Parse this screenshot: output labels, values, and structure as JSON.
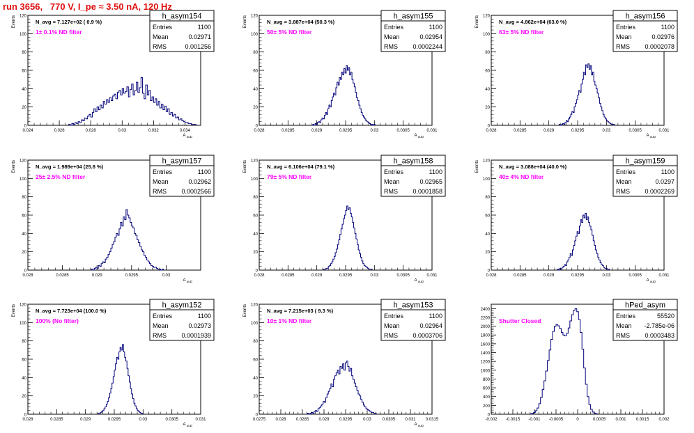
{
  "title": "run 3656,   770 V, I_pe ≈ 3.50 nA, 120 Hz",
  "colors": {
    "title": "#e01010",
    "hist": "#00007a",
    "note": "#ff00ff",
    "axis": "#000000"
  },
  "chart_data": [
    {
      "type": "histogram",
      "hist_name": "h_asym154",
      "stats": {
        "Entries": "1100",
        "Mean": "0.02971",
        "RMS": "0.001256"
      },
      "navg": "N_avg = 7.127e+02 ( 0.9 %)",
      "note": "1± 0.1% ND filter",
      "ylabel": "Events",
      "xlabel": "A_uuD",
      "xlim": [
        0.024,
        0.035
      ],
      "ylim": [
        0,
        120
      ],
      "xticks": [
        {
          "v": 0.024,
          "label": "0.024"
        },
        {
          "v": 0.026,
          "label": "0.026"
        },
        {
          "v": 0.028,
          "label": "0.028"
        },
        {
          "v": 0.03,
          "label": "0.03"
        },
        {
          "v": 0.032,
          "label": "0.032"
        },
        {
          "v": 0.034,
          "label": "0.034"
        }
      ],
      "yticks": [
        0,
        20,
        40,
        60,
        80,
        100,
        120
      ],
      "bins": {
        "start": 0.0266,
        "width": 0.0001,
        "counts": [
          1,
          0,
          2,
          1,
          3,
          2,
          4,
          3,
          6,
          5,
          8,
          7,
          10,
          12,
          9,
          14,
          18,
          15,
          20,
          17,
          22,
          19,
          26,
          23,
          28,
          25,
          30,
          27,
          32,
          34,
          29,
          36,
          38,
          33,
          40,
          35,
          37,
          42,
          31,
          39,
          45,
          33,
          38,
          47,
          36,
          41,
          52,
          35,
          29,
          44,
          33,
          38,
          27,
          31,
          25,
          29,
          22,
          26,
          19,
          23,
          17,
          21,
          15,
          18,
          12,
          14,
          10,
          12,
          8,
          9,
          6,
          7,
          5,
          4,
          3,
          3,
          2,
          2,
          1,
          1,
          1
        ]
      }
    },
    {
      "type": "histogram",
      "hist_name": "h_asym155",
      "stats": {
        "Entries": "1100",
        "Mean": "0.02954",
        "RMS": "0.0002244"
      },
      "navg": "N_avg = 3.887e+04 (50.3 %)",
      "note": "50± 5% ND filter",
      "ylabel": "Events",
      "xlabel": "A_uuD",
      "xlim": [
        0.028,
        0.031
      ],
      "ylim": [
        0,
        120
      ],
      "xticks": [
        {
          "v": 0.028,
          "label": "0.028"
        },
        {
          "v": 0.0285,
          "label": "0.0285"
        },
        {
          "v": 0.029,
          "label": "0.029"
        },
        {
          "v": 0.0295,
          "label": "0.0295"
        },
        {
          "v": 0.03,
          "label": "0.03"
        },
        {
          "v": 0.0305,
          "label": "0.0305"
        },
        {
          "v": 0.031,
          "label": "0.031"
        }
      ],
      "yticks": [
        0,
        20,
        40,
        60,
        80,
        100,
        120
      ],
      "bins": {
        "start": 0.02893,
        "width": 2e-05,
        "counts": [
          1,
          0,
          2,
          1,
          3,
          4,
          3,
          6,
          8,
          7,
          11,
          14,
          12,
          18,
          22,
          20,
          27,
          31,
          35,
          33,
          41,
          47,
          44,
          52,
          50,
          58,
          55,
          62,
          57,
          65,
          60,
          63,
          55,
          58,
          50,
          46,
          42,
          36,
          30,
          27,
          22,
          18,
          14,
          11,
          9,
          7,
          5,
          4,
          3,
          2,
          1,
          1,
          0,
          1
        ]
      }
    },
    {
      "type": "histogram",
      "hist_name": "h_asym156",
      "stats": {
        "Entries": "1100",
        "Mean": "0.02976",
        "RMS": "0.0002078"
      },
      "navg": "N_avg = 4.862e+04 (63.0 %)",
      "note": "63± 5% ND filter",
      "ylabel": "Events",
      "xlabel": "A_uuD",
      "xlim": [
        0.028,
        0.031
      ],
      "ylim": [
        0,
        120
      ],
      "xticks": [
        {
          "v": 0.028,
          "label": "0.028"
        },
        {
          "v": 0.0285,
          "label": "0.0285"
        },
        {
          "v": 0.029,
          "label": "0.029"
        },
        {
          "v": 0.0295,
          "label": "0.0295"
        },
        {
          "v": 0.03,
          "label": "0.03"
        },
        {
          "v": 0.0305,
          "label": "0.0305"
        },
        {
          "v": 0.031,
          "label": "0.031"
        }
      ],
      "yticks": [
        0,
        20,
        40,
        60,
        80,
        100,
        120
      ],
      "bins": {
        "start": 0.02918,
        "width": 2e-05,
        "counts": [
          1,
          0,
          1,
          2,
          1,
          3,
          5,
          4,
          7,
          9,
          12,
          15,
          14,
          20,
          24,
          28,
          33,
          38,
          36,
          45,
          50,
          58,
          55,
          66,
          63,
          67,
          61,
          65,
          55,
          58,
          48,
          44,
          40,
          35,
          30,
          24,
          20,
          16,
          12,
          9,
          7,
          5,
          4,
          3,
          2,
          1,
          1,
          1
        ]
      }
    },
    {
      "type": "histogram",
      "hist_name": "h_asym157",
      "stats": {
        "Entries": "1100",
        "Mean": "0.02962",
        "RMS": "0.0002566"
      },
      "navg": "N_avg = 1.989e+04 (25.8 %)",
      "note": "25± 2.5% ND filter",
      "ylabel": "Events",
      "xlabel": "A_uuD",
      "xlim": [
        0.028,
        0.0305
      ],
      "ylim": [
        0,
        120
      ],
      "xticks": [
        {
          "v": 0.028,
          "label": "0.028"
        },
        {
          "v": 0.0285,
          "label": "0.0285"
        },
        {
          "v": 0.029,
          "label": "0.029"
        },
        {
          "v": 0.0295,
          "label": "0.0295"
        },
        {
          "v": 0.03,
          "label": "0.03"
        }
      ],
      "yticks": [
        0,
        20,
        40,
        60,
        80,
        100,
        120
      ],
      "bins": {
        "start": 0.02892,
        "width": 2e-05,
        "counts": [
          1,
          0,
          2,
          3,
          2,
          5,
          4,
          7,
          9,
          8,
          12,
          14,
          17,
          20,
          24,
          28,
          31,
          36,
          40,
          38,
          45,
          52,
          48,
          58,
          55,
          66,
          60,
          57,
          52,
          48,
          46,
          40,
          38,
          33,
          30,
          26,
          22,
          20,
          16,
          14,
          11,
          9,
          7,
          5,
          4,
          3,
          3,
          2,
          1,
          1,
          0,
          1
        ]
      }
    },
    {
      "type": "histogram",
      "hist_name": "h_asym158",
      "stats": {
        "Entries": "1100",
        "Mean": "0.02965",
        "RMS": "0.0001858"
      },
      "navg": "N_avg = 6.106e+04 (79.1 %)",
      "note": "79± 5% ND filter",
      "ylabel": "Events",
      "xlabel": "A_uuD",
      "xlim": [
        0.028,
        0.031
      ],
      "ylim": [
        0,
        120
      ],
      "xticks": [
        {
          "v": 0.028,
          "label": "0.028"
        },
        {
          "v": 0.0285,
          "label": "0.0285"
        },
        {
          "v": 0.029,
          "label": "0.029"
        },
        {
          "v": 0.0295,
          "label": "0.0295"
        },
        {
          "v": 0.03,
          "label": "0.03"
        },
        {
          "v": 0.0305,
          "label": "0.0305"
        },
        {
          "v": 0.031,
          "label": "0.031"
        }
      ],
      "yticks": [
        0,
        20,
        40,
        60,
        80,
        100,
        120
      ],
      "bins": {
        "start": 0.02912,
        "width": 2e-05,
        "counts": [
          1,
          1,
          2,
          2,
          4,
          5,
          7,
          9,
          12,
          15,
          19,
          23,
          28,
          33,
          39,
          45,
          50,
          56,
          60,
          65,
          70,
          66,
          68,
          62,
          58,
          52,
          46,
          40,
          34,
          28,
          22,
          18,
          14,
          10,
          7,
          5,
          4,
          3,
          2,
          1,
          1,
          1
        ]
      }
    },
    {
      "type": "histogram",
      "hist_name": "h_asym159",
      "stats": {
        "Entries": "1100",
        "Mean": "0.0297",
        "RMS": "0.0002269"
      },
      "navg": "N_avg = 3.088e+04 (40.0 %)",
      "note": "40± 4% ND filter",
      "ylabel": "Events",
      "xlabel": "A_uuD",
      "xlim": [
        0.028,
        0.031
      ],
      "ylim": [
        0,
        120
      ],
      "xticks": [
        {
          "v": 0.028,
          "label": "0.028"
        },
        {
          "v": 0.0285,
          "label": "0.0285"
        },
        {
          "v": 0.029,
          "label": "0.029"
        },
        {
          "v": 0.0295,
          "label": "0.0295"
        },
        {
          "v": 0.03,
          "label": "0.03"
        },
        {
          "v": 0.0305,
          "label": "0.0305"
        },
        {
          "v": 0.031,
          "label": "0.031"
        }
      ],
      "yticks": [
        0,
        20,
        40,
        60,
        80,
        100,
        120
      ],
      "bins": {
        "start": 0.02915,
        "width": 2e-05,
        "counts": [
          1,
          0,
          2,
          1,
          3,
          4,
          6,
          5,
          9,
          11,
          14,
          18,
          16,
          22,
          27,
          32,
          37,
          42,
          40,
          48,
          55,
          52,
          60,
          57,
          62,
          55,
          58,
          52,
          48,
          44,
          38,
          32,
          27,
          22,
          18,
          14,
          11,
          8,
          6,
          5,
          3,
          2,
          2,
          1,
          1
        ]
      }
    },
    {
      "type": "histogram",
      "hist_name": "h_asym152",
      "stats": {
        "Entries": "1100",
        "Mean": "0.02973",
        "RMS": "0.0001939"
      },
      "navg": "N_avg = 7.723e+04 (100.0 %)",
      "note": "100% (No filter)",
      "ylabel": "Events",
      "xlabel": "A_uuD",
      "xlim": [
        0.028,
        0.031
      ],
      "ylim": [
        0,
        120
      ],
      "xticks": [
        {
          "v": 0.028,
          "label": "0.028"
        },
        {
          "v": 0.0285,
          "label": "0.0285"
        },
        {
          "v": 0.029,
          "label": "0.029"
        },
        {
          "v": 0.0295,
          "label": "0.0295"
        },
        {
          "v": 0.03,
          "label": "0.03"
        },
        {
          "v": 0.0305,
          "label": "0.0305"
        },
        {
          "v": 0.031,
          "label": "0.031"
        }
      ],
      "yticks": [
        0,
        20,
        40,
        60,
        80,
        100,
        120
      ],
      "bins": {
        "start": 0.02922,
        "width": 2e-05,
        "counts": [
          1,
          1,
          2,
          3,
          4,
          6,
          8,
          11,
          14,
          18,
          23,
          28,
          34,
          41,
          48,
          55,
          62,
          60,
          68,
          73,
          70,
          76,
          68,
          62,
          58,
          50,
          42,
          35,
          28,
          22,
          17,
          12,
          9,
          6,
          4,
          3,
          2,
          1,
          1
        ]
      }
    },
    {
      "type": "histogram",
      "hist_name": "h_asym153",
      "stats": {
        "Entries": "1100",
        "Mean": "0.02964",
        "RMS": "0.0003706"
      },
      "navg": "N_avg = 7.215e+03 ( 9.3 %)",
      "note": "10± 1% ND filter",
      "ylabel": "Events",
      "xlabel": "A_uuD",
      "xlim": [
        0.0275,
        0.0315
      ],
      "ylim": [
        0,
        120
      ],
      "xticks": [
        {
          "v": 0.0275,
          "label": "0.0275"
        },
        {
          "v": 0.028,
          "label": "0.028"
        },
        {
          "v": 0.0285,
          "label": "0.0285"
        },
        {
          "v": 0.029,
          "label": "0.029"
        },
        {
          "v": 0.0295,
          "label": "0.0295"
        },
        {
          "v": 0.03,
          "label": "0.03"
        },
        {
          "v": 0.0305,
          "label": "0.0305"
        },
        {
          "v": 0.031,
          "label": "0.031"
        },
        {
          "v": 0.0315,
          "label": "0.0315"
        }
      ],
      "yticks": [
        0,
        20,
        40,
        60,
        80,
        100,
        120
      ],
      "bins": {
        "start": 0.02862,
        "width": 3e-05,
        "counts": [
          1,
          0,
          1,
          2,
          1,
          3,
          4,
          3,
          6,
          7,
          9,
          11,
          14,
          13,
          18,
          22,
          25,
          28,
          33,
          30,
          38,
          42,
          45,
          48,
          44,
          52,
          50,
          55,
          48,
          56,
          58,
          52,
          47,
          50,
          42,
          38,
          34,
          30,
          26,
          22,
          20,
          16,
          13,
          10,
          8,
          6,
          5,
          4,
          3,
          2,
          2,
          1,
          1
        ]
      }
    },
    {
      "type": "histogram",
      "hist_name": "hPed_asym",
      "stats": {
        "Entries": "55520",
        "Mean": "-2.785e-06",
        "RMS": "0.0003483"
      },
      "navg": "",
      "note": "Shutter Closed",
      "ylabel": "",
      "xlabel": "",
      "xlim": [
        -0.002,
        0.002
      ],
      "ylim": [
        0,
        2500
      ],
      "xticks": [
        {
          "v": -0.002,
          "label": "-0.002"
        },
        {
          "v": -0.0015,
          "label": "-0.0015"
        },
        {
          "v": -0.001,
          "label": "-0.001"
        },
        {
          "v": -0.0005,
          "label": "-0.0005"
        },
        {
          "v": 0,
          "label": "0"
        },
        {
          "v": 0.0005,
          "label": "0.0005"
        },
        {
          "v": 0.001,
          "label": "0.001"
        },
        {
          "v": 0.0015,
          "label": "0.0015"
        },
        {
          "v": 0.002,
          "label": "0.002"
        }
      ],
      "yticks": [
        0,
        200,
        400,
        600,
        800,
        1000,
        1200,
        1400,
        1600,
        1800,
        2000,
        2200,
        2400
      ],
      "bins": {
        "start": -0.0011,
        "width": 4e-05,
        "counts": [
          10,
          20,
          40,
          80,
          140,
          240,
          380,
          560,
          760,
          980,
          1220,
          1460,
          1700,
          1880,
          2000,
          2040,
          2010,
          1950,
          1860,
          1800,
          1780,
          1840,
          1960,
          2120,
          2260,
          2360,
          2400,
          2330,
          2150,
          1860,
          1480,
          1050,
          680,
          400,
          220,
          110,
          50,
          20,
          10
        ]
      }
    }
  ]
}
